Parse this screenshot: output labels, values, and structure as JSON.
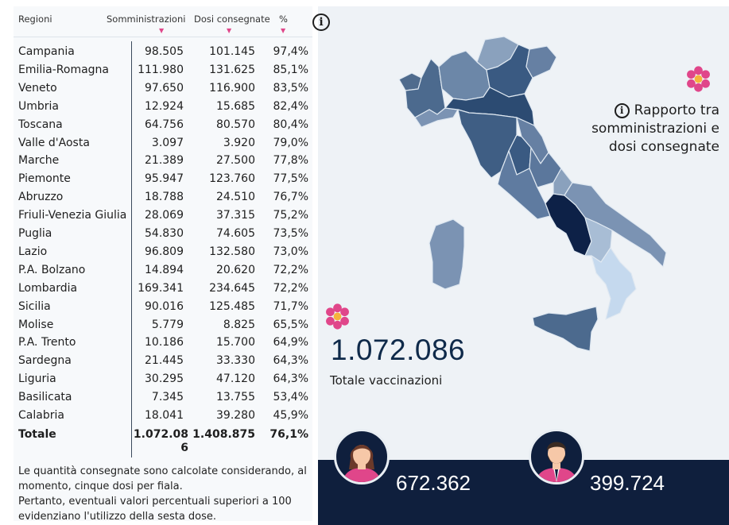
{
  "table": {
    "headers": {
      "region": "Regioni",
      "administered": "Somministrazioni",
      "delivered": "Dosi consegnate",
      "percent": "%"
    },
    "sort_glyph": "▼",
    "rows": [
      {
        "region": "Campania",
        "administered": "98.505",
        "delivered": "101.145",
        "percent": "97,4%"
      },
      {
        "region": "Emilia-Romagna",
        "administered": "111.980",
        "delivered": "131.625",
        "percent": "85,1%"
      },
      {
        "region": "Veneto",
        "administered": "97.650",
        "delivered": "116.900",
        "percent": "83,5%"
      },
      {
        "region": "Umbria",
        "administered": "12.924",
        "delivered": "15.685",
        "percent": "82,4%"
      },
      {
        "region": "Toscana",
        "administered": "64.756",
        "delivered": "80.570",
        "percent": "80,4%"
      },
      {
        "region": "Valle d'Aosta",
        "administered": "3.097",
        "delivered": "3.920",
        "percent": "79,0%"
      },
      {
        "region": "Marche",
        "administered": "21.389",
        "delivered": "27.500",
        "percent": "77,8%"
      },
      {
        "region": "Piemonte",
        "administered": "95.947",
        "delivered": "123.760",
        "percent": "77,5%"
      },
      {
        "region": "Abruzzo",
        "administered": "18.788",
        "delivered": "24.510",
        "percent": "76,7%"
      },
      {
        "region": "Friuli-Venezia Giulia",
        "administered": "28.069",
        "delivered": "37.315",
        "percent": "75,2%"
      },
      {
        "region": "Puglia",
        "administered": "54.830",
        "delivered": "74.605",
        "percent": "73,5%"
      },
      {
        "region": "Lazio",
        "administered": "96.809",
        "delivered": "132.580",
        "percent": "73,0%"
      },
      {
        "region": "P.A. Bolzano",
        "administered": "14.894",
        "delivered": "20.620",
        "percent": "72,2%"
      },
      {
        "region": "Lombardia",
        "administered": "169.341",
        "delivered": "234.645",
        "percent": "72,2%"
      },
      {
        "region": "Sicilia",
        "administered": "90.016",
        "delivered": "125.485",
        "percent": "71,7%"
      },
      {
        "region": "Molise",
        "administered": "5.779",
        "delivered": "8.825",
        "percent": "65,5%"
      },
      {
        "region": "P.A. Trento",
        "administered": "10.186",
        "delivered": "15.700",
        "percent": "64,9%"
      },
      {
        "region": "Sardegna",
        "administered": "21.445",
        "delivered": "33.330",
        "percent": "64,3%"
      },
      {
        "region": "Liguria",
        "administered": "30.295",
        "delivered": "47.120",
        "percent": "64,3%"
      },
      {
        "region": "Basilicata",
        "administered": "7.345",
        "delivered": "13.755",
        "percent": "53,4%"
      },
      {
        "region": "Calabria",
        "administered": "18.041",
        "delivered": "39.280",
        "percent": "45,9%"
      }
    ],
    "total": {
      "label": "Totale",
      "administered_line1": "1.072.08",
      "administered_line2": "6",
      "delivered": "1.408.875",
      "percent": "76,1%"
    }
  },
  "footnote": {
    "lines": [
      "Le quantità consegnate sono calcolate considerando, al",
      "momento, cinque dosi per fiala.",
      "Pertanto, eventuali valori percentuali superiori a 100",
      "evidenziano l'utilizzo della sesta dose."
    ]
  },
  "info_icon": "i",
  "ratio": {
    "icon": "i",
    "line1": "Rapporto tra",
    "line2": "somministrazioni e",
    "line3": "dosi consegnate"
  },
  "summary": {
    "total_value": "1.072.086",
    "total_label": "Totale vaccinazioni",
    "women_count": "672.362",
    "men_count": "399.724"
  },
  "icons": {
    "info": "info-circle-icon",
    "flower": "flower-icon",
    "woman": "woman-avatar-icon",
    "man": "man-avatar-icon"
  },
  "colors": {
    "background_panel": "#eef2f6",
    "band": "#0f1f3d",
    "accent_pink": "#e0468a",
    "map_dark": "#0d2147",
    "map_light": "#c5d9ee",
    "text_dark": "#0f2a4a"
  }
}
